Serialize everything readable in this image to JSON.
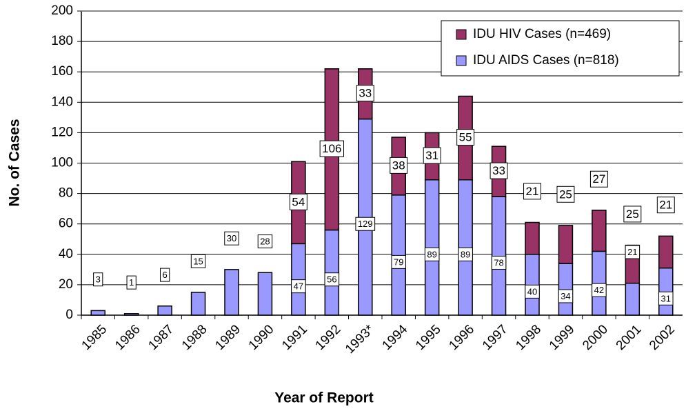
{
  "chart_data": {
    "type": "stacked_bar",
    "x_label": "Year of Report",
    "y_label": "No. of Cases",
    "categories": [
      "1985",
      "1986",
      "1987",
      "1988",
      "1989",
      "1990",
      "1991",
      "1992",
      "1993*",
      "1994",
      "1995",
      "1996",
      "1997",
      "1998",
      "1999",
      "2000",
      "2001",
      "2002"
    ],
    "series": [
      {
        "name": "IDU AIDS Cases (n=818)",
        "color": "#9999ff",
        "values": [
          3,
          1,
          6,
          15,
          30,
          28,
          47,
          56,
          129,
          79,
          89,
          89,
          78,
          40,
          34,
          42,
          21,
          31
        ]
      },
      {
        "name": "IDU HIV Cases (n=469)",
        "color": "#993366",
        "values": [
          null,
          null,
          null,
          null,
          null,
          null,
          54,
          106,
          33,
          38,
          31,
          55,
          33,
          21,
          25,
          27,
          25,
          21
        ]
      }
    ],
    "ylim": [
      0,
      200
    ],
    "yticks": [
      0,
      20,
      40,
      60,
      80,
      100,
      120,
      140,
      160,
      180,
      200
    ],
    "grid": true,
    "legend": "upper right"
  }
}
